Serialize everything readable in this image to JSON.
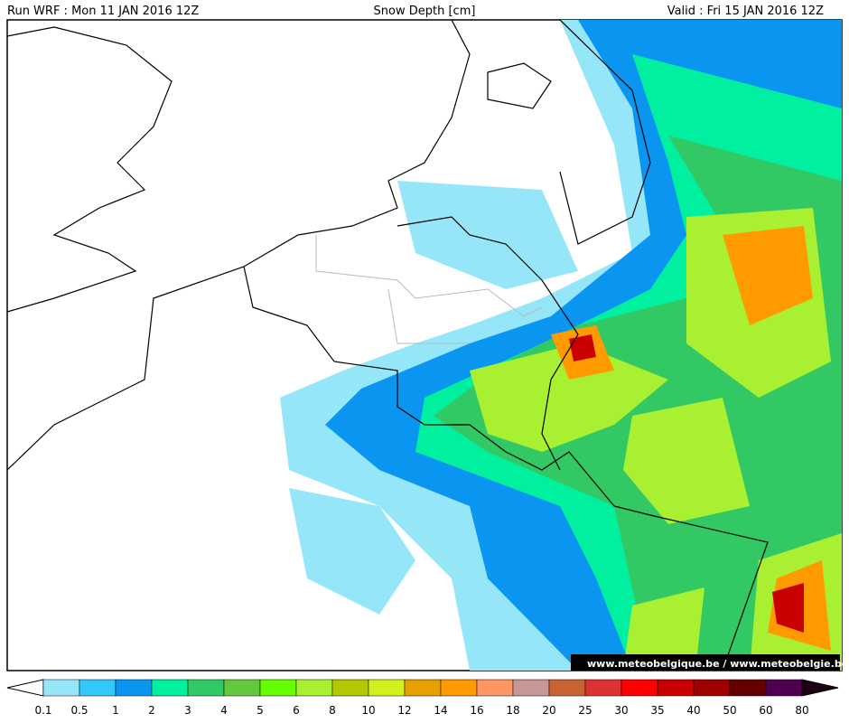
{
  "header": {
    "run": "Run WRF : Mon 11 JAN 2016 12Z",
    "field": "Snow Depth [cm]",
    "valid": "Valid : Fri 15 JAN 2016 12Z"
  },
  "watermark": "www.meteobelgique.be / www.meteobelgie.be",
  "colorbar": {
    "levels": [
      0.1,
      0.5,
      1,
      2,
      3,
      4,
      5,
      6,
      8,
      10,
      12,
      14,
      16,
      18,
      20,
      25,
      30,
      35,
      40,
      50,
      60,
      80
    ],
    "colors": [
      "#96e6fa",
      "#32c8fa",
      "#0a96f0",
      "#00f0a0",
      "#32c864",
      "#64c83c",
      "#64ff00",
      "#aaf032",
      "#b4c800",
      "#d2f01e",
      "#e6a000",
      "#ff9b00",
      "#ff9664",
      "#c89696",
      "#c86432",
      "#dc3232",
      "#ff0000",
      "#c80000",
      "#a00000",
      "#640000",
      "#500050"
    ],
    "under_color": "#ffffff",
    "over_color": "#1e0014"
  }
}
